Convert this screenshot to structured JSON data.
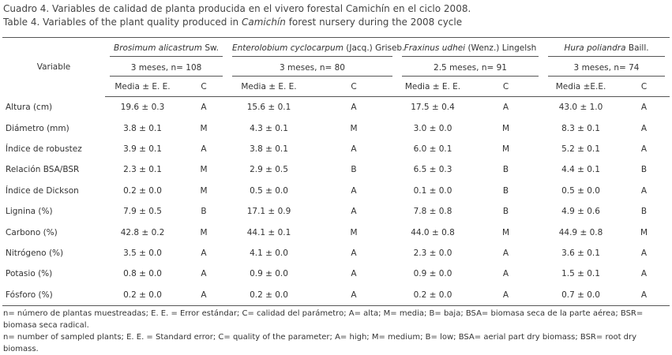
{
  "title_es": "Cuadro 4. Variables de calidad de planta producida en el vivero forestal Camichín en el ciclo 2008.",
  "title_en": [
    "Table 4. Variables of the plant quality produced in ",
    "Camichín",
    " forest nursery during the 2008 cycle"
  ],
  "table": {
    "variable_header": "Variable",
    "species": [
      {
        "name": "Brosimum alicastrum",
        "author": "Sw.",
        "sample": "3 meses, n= 108",
        "mean_header": "Media ± E. E.",
        "c_header": "C"
      },
      {
        "name": "Enterolobium cyclocarpum",
        "author": "(Jacq.) Griseb.",
        "sample": "3 meses, n= 80",
        "mean_header": "Media ± E. E.",
        "c_header": "C"
      },
      {
        "name": "Fraxinus udhei",
        "author": "(Wenz.) Lingelsh",
        "sample": "2.5 meses, n= 91",
        "mean_header": "Media ± E. E.",
        "c_header": "C"
      },
      {
        "name": "Hura poliandra",
        "author": "Baill.",
        "sample": "3 meses, n= 74",
        "mean_header": "Media ±E.E.",
        "c_header": "C"
      }
    ],
    "rows": [
      [
        "Altura (cm)",
        "19.6 ± 0.3",
        "A",
        "15.6 ± 0.1",
        "A",
        "17.5 ± 0.4",
        "A",
        "43.0 ± 1.0",
        "A"
      ],
      [
        "Diámetro (mm)",
        "3.8 ± 0.1",
        "M",
        "4.3 ± 0.1",
        "M",
        "3.0 ± 0.0",
        "M",
        "8.3 ± 0.1",
        "A"
      ],
      [
        "Índice de robustez",
        "3.9 ± 0.1",
        "A",
        "3.8 ± 0.1",
        "A",
        "6.0 ± 0.1",
        "M",
        "5.2 ± 0.1",
        "A"
      ],
      [
        "Relación BSA/BSR",
        "2.3 ± 0.1",
        "M",
        "2.9 ± 0.5",
        "B",
        "6.5 ± 0.3",
        "B",
        "4.4 ± 0.1",
        "B"
      ],
      [
        "Índice de Dickson",
        "0.2 ± 0.0",
        "M",
        "0.5 ± 0.0",
        "A",
        "0.1 ± 0.0",
        "B",
        "0.5 ± 0.0",
        "A"
      ],
      [
        "Lignina (%)",
        "7.9 ± 0.5",
        "B",
        "17.1 ± 0.9",
        "A",
        "7.8 ± 0.8",
        "B",
        "4.9 ± 0.6",
        "B"
      ],
      [
        "Carbono (%)",
        "42.8 ± 0.2",
        "M",
        "44.1 ± 0.1",
        "M",
        "44.0 ± 0.8",
        "M",
        "44.9 ± 0.8",
        "M"
      ],
      [
        "Nitrógeno (%)",
        "3.5 ± 0.0",
        "A",
        "4.1 ± 0.0",
        "A",
        "2.3 ± 0.0",
        "A",
        "3.6 ± 0.1",
        "A"
      ],
      [
        "Potasio (%)",
        "0.8 ± 0.0",
        "A",
        "0.9 ± 0.0",
        "A",
        "0.9 ± 0.0",
        "A",
        "1.5 ± 0.1",
        "A"
      ],
      [
        "Fósforo (%)",
        "0.2 ± 0.0",
        "A",
        "0.2 ± 0.0",
        "A",
        "0.2 ± 0.0",
        "A",
        "0.7 ± 0.0",
        "A"
      ]
    ]
  },
  "footnote_es": "n= número de plantas muestreadas; E. E. = Error estándar; C= calidad del parámetro; A= alta; M= media; B= baja; BSA= biomasa seca de la parte aérea; BSR= biomasa seca radical.",
  "footnote_en": "n= number of sampled plants; E. E. = Standard error; C= quality of the parameter; A= high; M= medium; B= low; BSA= aerial part dry biomass; BSR= root dry biomass."
}
